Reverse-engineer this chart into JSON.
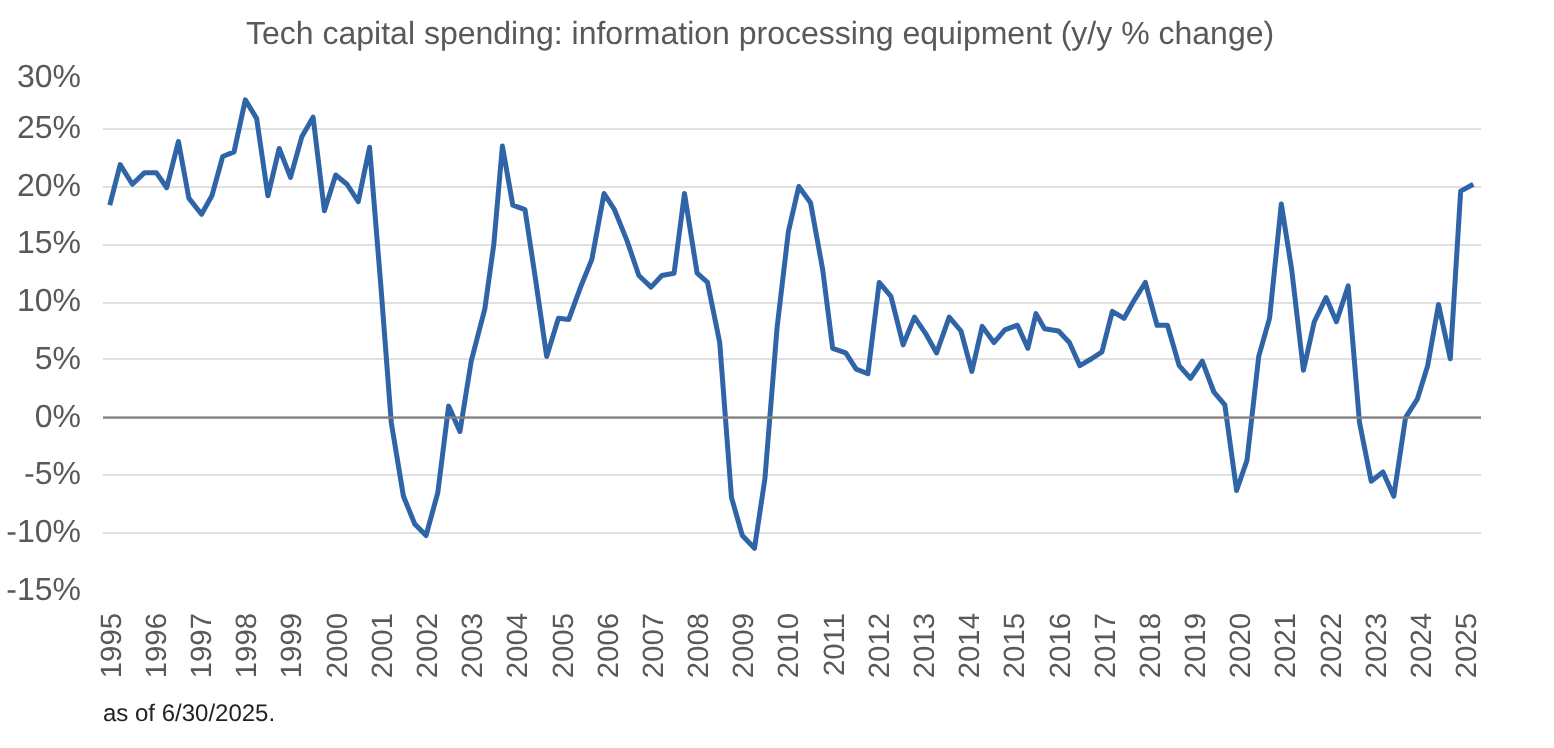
{
  "chart_data": {
    "type": "line",
    "legend": "top left",
    "grid": "y",
    "marker": "none",
    "line_style": "solid",
    "x": [
      1995.0,
      1995.23,
      1995.5,
      1995.77,
      1996.03,
      1996.26,
      1996.52,
      1996.75,
      1997.03,
      1997.26,
      1997.5,
      1997.75,
      1998.0,
      1998.25,
      1998.5,
      1998.75,
      1999.0,
      1999.25,
      1999.5,
      1999.75,
      2000.0,
      2000.25,
      2000.5,
      2000.75,
      2001.0,
      2001.23,
      2001.5,
      2001.75,
      2002.0,
      2002.26,
      2002.5,
      2002.75,
      2003.0,
      2003.3,
      2003.5,
      2003.69,
      2003.92,
      2004.19,
      2004.43,
      2004.67,
      2004.93,
      2005.16,
      2005.43,
      2005.67,
      2005.94,
      2006.17,
      2006.45,
      2006.71,
      2006.98,
      2007.22,
      2007.49,
      2007.72,
      2008.0,
      2008.23,
      2008.5,
      2008.76,
      2009.0,
      2009.27,
      2009.5,
      2009.77,
      2010.02,
      2010.25,
      2010.51,
      2010.78,
      2011.0,
      2011.29,
      2011.52,
      2011.78,
      2012.03,
      2012.29,
      2012.56,
      2012.81,
      2013.07,
      2013.3,
      2013.58,
      2013.84,
      2014.08,
      2014.31,
      2014.57,
      2014.81,
      2015.09,
      2015.32,
      2015.5,
      2015.69,
      2016.0,
      2016.24,
      2016.47,
      2016.73,
      2016.96,
      2017.19,
      2017.45,
      2017.68,
      2017.92,
      2018.18,
      2018.41,
      2018.67,
      2018.92,
      2019.18,
      2019.44,
      2019.68,
      2019.94,
      2020.17,
      2020.43,
      2020.67,
      2020.93,
      2021.16,
      2021.42,
      2021.66,
      2021.92,
      2022.15,
      2022.41,
      2022.66,
      2022.92,
      2023.18,
      2023.42,
      2023.68,
      2023.94,
      2024.17,
      2024.41,
      2024.67,
      2024.9,
      2025.18
    ],
    "series": [
      {
        "name": "Tech capital spending: information processing equipment (y/y % change)",
        "color": "#2f65a7",
        "values": [
          18.4,
          21.9,
          20.2,
          21.2,
          21.2,
          19.9,
          23.9,
          19.0,
          17.6,
          19.2,
          22.6,
          23.0,
          27.5,
          25.9,
          19.2,
          23.3,
          20.8,
          24.3,
          26.0,
          17.9,
          21.0,
          20.2,
          18.7,
          23.4,
          11.4,
          -0.4,
          -6.8,
          -9.2,
          -10.2,
          -6.5,
          1.0,
          -1.2,
          4.9,
          9.4,
          15.0,
          23.5,
          18.4,
          18.0,
          11.8,
          5.3,
          8.6,
          8.5,
          11.4,
          13.7,
          19.4,
          18.0,
          15.3,
          12.3,
          11.3,
          12.3,
          12.5,
          19.4,
          12.5,
          11.7,
          6.5,
          -6.9,
          -10.2,
          -11.3,
          -5.3,
          7.8,
          16.1,
          20.0,
          18.6,
          12.8,
          6.0,
          5.6,
          4.2,
          3.8,
          11.7,
          10.5,
          6.3,
          8.7,
          7.2,
          5.6,
          8.7,
          7.5,
          4.0,
          7.9,
          6.5,
          7.6,
          8.0,
          6.0,
          9.0,
          7.7,
          7.5,
          6.5,
          4.5,
          5.1,
          5.7,
          9.2,
          8.6,
          10.2,
          11.7,
          8.0,
          8.0,
          4.5,
          3.4,
          4.9,
          2.2,
          1.1,
          -6.3,
          -3.7,
          5.3,
          8.6,
          18.5,
          12.8,
          4.1,
          8.3,
          10.4,
          8.3,
          11.4,
          -0.4,
          -5.5,
          -4.7,
          -6.8,
          0.0,
          1.6,
          4.5,
          9.8,
          5.1,
          19.6,
          20.2
        ]
      }
    ],
    "xlim": [
      1994.85,
      2025.35
    ],
    "xticks": [
      1995,
      1996,
      1997,
      1998,
      1999,
      2000,
      2001,
      2002,
      2003,
      2004,
      2005,
      2006,
      2007,
      2008,
      2009,
      2010,
      2011,
      2012,
      2013,
      2014,
      2015,
      2016,
      2017,
      2018,
      2019,
      2020,
      2021,
      2022,
      2023,
      2024,
      2025
    ],
    "ylim": [
      -15,
      30
    ],
    "yticks": [
      {
        "value": -15,
        "label": "-15%"
      },
      {
        "value": -10,
        "label": "-10%"
      },
      {
        "value": -5,
        "label": "-5%"
      },
      {
        "value": 0,
        "label": "0%"
      },
      {
        "value": 5,
        "label": "5%"
      },
      {
        "value": 10,
        "label": "10%"
      },
      {
        "value": 15,
        "label": "15%"
      },
      {
        "value": 20,
        "label": "20%"
      },
      {
        "value": 25,
        "label": "25%"
      },
      {
        "value": 30,
        "label": "30%"
      }
    ],
    "ref_lines": [
      {
        "axis": "y",
        "value": 0,
        "color": "#808080"
      }
    ],
    "annotations": [
      "as of 6/30/2025."
    ]
  }
}
